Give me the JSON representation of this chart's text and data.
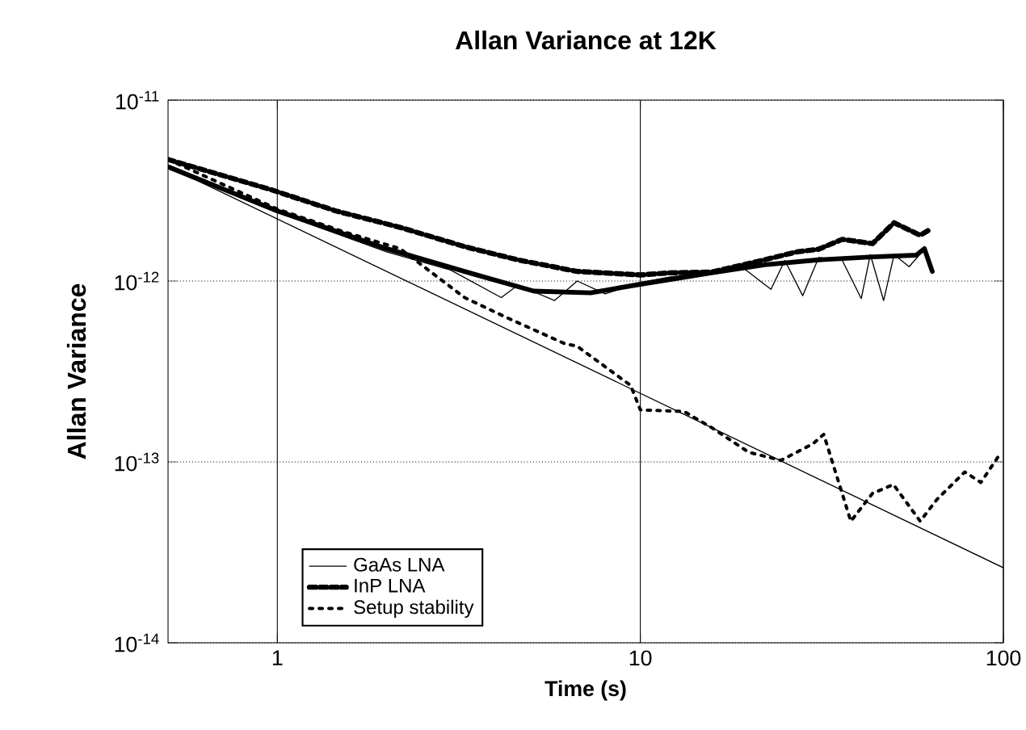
{
  "chart_data": {
    "type": "line",
    "title": "Allan Variance at 12K",
    "xlabel": "Time (s)",
    "ylabel": "Allan Variance",
    "log": "xy",
    "grid": true,
    "legend": "bottom left",
    "marker": "none",
    "xlim": [
      0.5,
      100
    ],
    "xticks": [
      1,
      10,
      100
    ],
    "ylim": [
      1e-14,
      1e-11
    ],
    "yticks": [
      {
        "value": 1e-14,
        "label": "10$^{-14}$"
      },
      {
        "value": 1e-13,
        "label": "10$^{-13}$"
      },
      {
        "value": 1e-12,
        "label": "10$^{-12}$"
      },
      {
        "value": 1e-11,
        "label": "10$^{-11}$"
      }
    ],
    "series": [
      {
        "name": "GaAs LNA",
        "color": "#000000",
        "line_style": "solid",
        "x": [
          0.5,
          1,
          2,
          3,
          4.14,
          4.6,
          5.8,
          6.7,
          8,
          10,
          12,
          15.7,
          19,
          22.9,
          25,
          28,
          31,
          36,
          40.6,
          43,
          46.8,
          50,
          55,
          60.6,
          63.7
        ],
        "values": [
          4.3e-12,
          2.4e-12,
          1.45e-12,
          1.15e-12,
          8.1e-13,
          9.5e-13,
          7.8e-13,
          1e-12,
          8.5e-13,
          9.8e-13,
          1.05e-12,
          1.12e-12,
          1.2e-12,
          9e-13,
          1.3e-12,
          8.3e-13,
          1.35e-12,
          1.3e-12,
          8e-13,
          1.4e-12,
          7.8e-13,
          1.4e-12,
          1.2e-12,
          1.5e-12,
          1.13e-12
        ]
      },
      {
        "name": "InP LNA",
        "color": "#000000",
        "line_style": "dashed",
        "x": [
          0.5,
          0.96,
          1.45,
          2.18,
          3.28,
          4.59,
          6.7,
          7.9,
          10,
          12,
          15.7,
          22,
          27,
          31,
          36,
          43.6,
          50,
          59,
          62
        ],
        "values": [
          4.7e-12,
          3.2e-12,
          2.44e-12,
          1.98e-12,
          1.55e-12,
          1.31e-12,
          1.13e-12,
          1.11e-12,
          1.08e-12,
          1.11e-12,
          1.12e-12,
          1.31e-12,
          1.45e-12,
          1.5e-12,
          1.7e-12,
          1.61e-12,
          2.1e-12,
          1.79e-12,
          1.9e-12
        ]
      },
      {
        "name": "Setup stability",
        "color": "#000000",
        "line_style": "dotted",
        "x": [
          0.5,
          1,
          1.54,
          2.18,
          3.28,
          4.27,
          6.2,
          6.7,
          9.4,
          10,
          13.2,
          15.7,
          19.9,
          24.4,
          29.9,
          32,
          38,
          43.6,
          49.8,
          59,
          65.6,
          78.3,
          86.7,
          98.6
        ],
        "values": [
          4.7e-12,
          2.5e-12,
          1.86e-12,
          1.51e-12,
          8.1e-13,
          6.3e-13,
          4.5e-13,
          4.36e-13,
          2.65e-13,
          1.94e-13,
          1.9e-13,
          1.55e-13,
          1.13e-13,
          1.02e-13,
          1.26e-13,
          1.42e-13,
          4.7e-14,
          6.7e-14,
          7.5e-14,
          4.7e-14,
          6.2e-14,
          8.8e-14,
          7.7e-14,
          1.13e-13
        ]
      },
      {
        "color": "#000000",
        "line_style": "solid",
        "x": [
          0.5,
          1,
          2,
          3.38,
          5.09,
          7.3,
          10,
          15.7,
          22,
          31,
          43.6,
          57.5,
          60.6,
          63.7
        ],
        "values": [
          4.28e-12,
          2.44e-12,
          1.51e-12,
          1.11e-12,
          8.8e-13,
          8.6e-13,
          9.6e-13,
          1.11e-12,
          1.23e-12,
          1.31e-12,
          1.36e-12,
          1.39e-12,
          1.51e-12,
          1.13e-12
        ]
      },
      {
        "color": "#000000",
        "line_style": "solid",
        "x": [
          0.5,
          100
        ],
        "values": [
          4.3e-12,
          2.6e-14
        ]
      }
    ]
  }
}
